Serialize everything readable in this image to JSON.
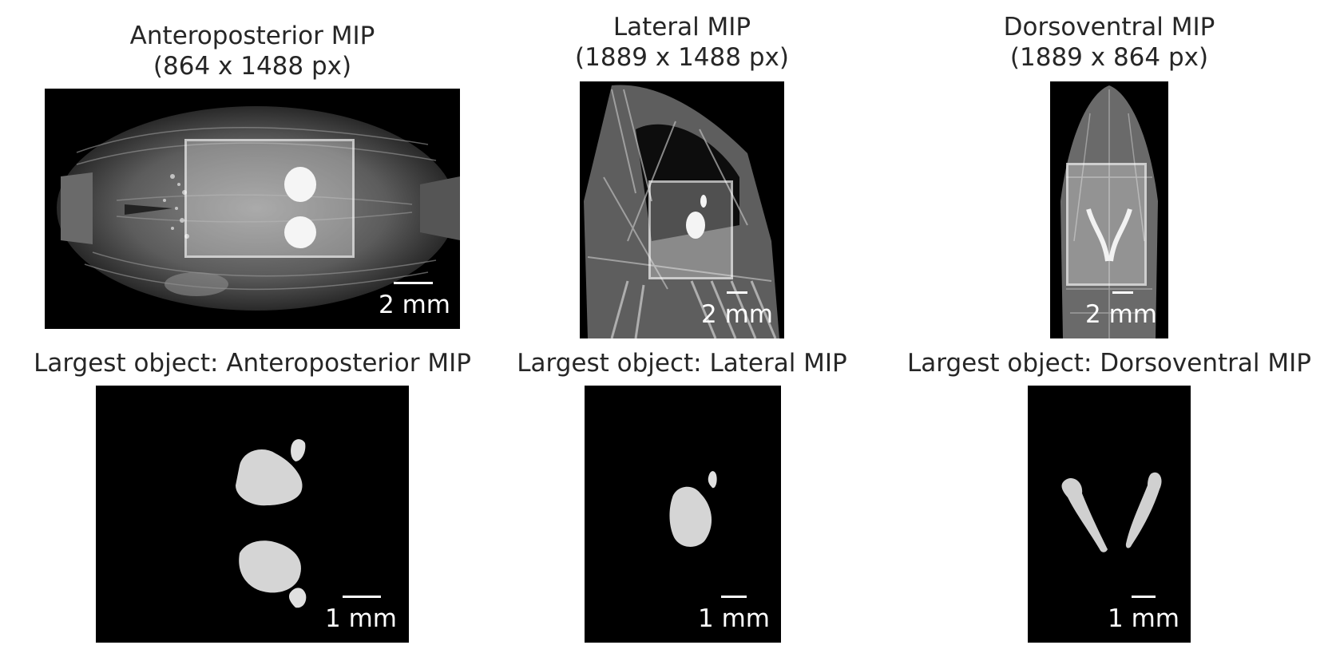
{
  "panels": {
    "ap": {
      "title_line1": "Anteroposterior MIP",
      "title_line2": "(864 x 1488 px)",
      "scale_label": "2 mm"
    },
    "lat": {
      "title_line1": "Lateral MIP",
      "title_line2": "(1889 x 1488 px)",
      "scale_label": "2 mm"
    },
    "dv": {
      "title_line1": "Dorsoventral MIP",
      "title_line2": "(1889 x 864 px)",
      "scale_label": "2 mm"
    }
  },
  "objects": {
    "ap": {
      "title": "Largest object: Anteroposterior MIP",
      "scale_label": "1 mm"
    },
    "lat": {
      "title": "Largest object: Lateral MIP",
      "scale_label": "1 mm"
    },
    "dv": {
      "title": "Largest object: Dorsoventral MIP",
      "scale_label": "1 mm"
    }
  },
  "colors": {
    "background": "#ffffff",
    "image_background": "#000000",
    "text": "#262626",
    "scale": "#ffffff"
  }
}
